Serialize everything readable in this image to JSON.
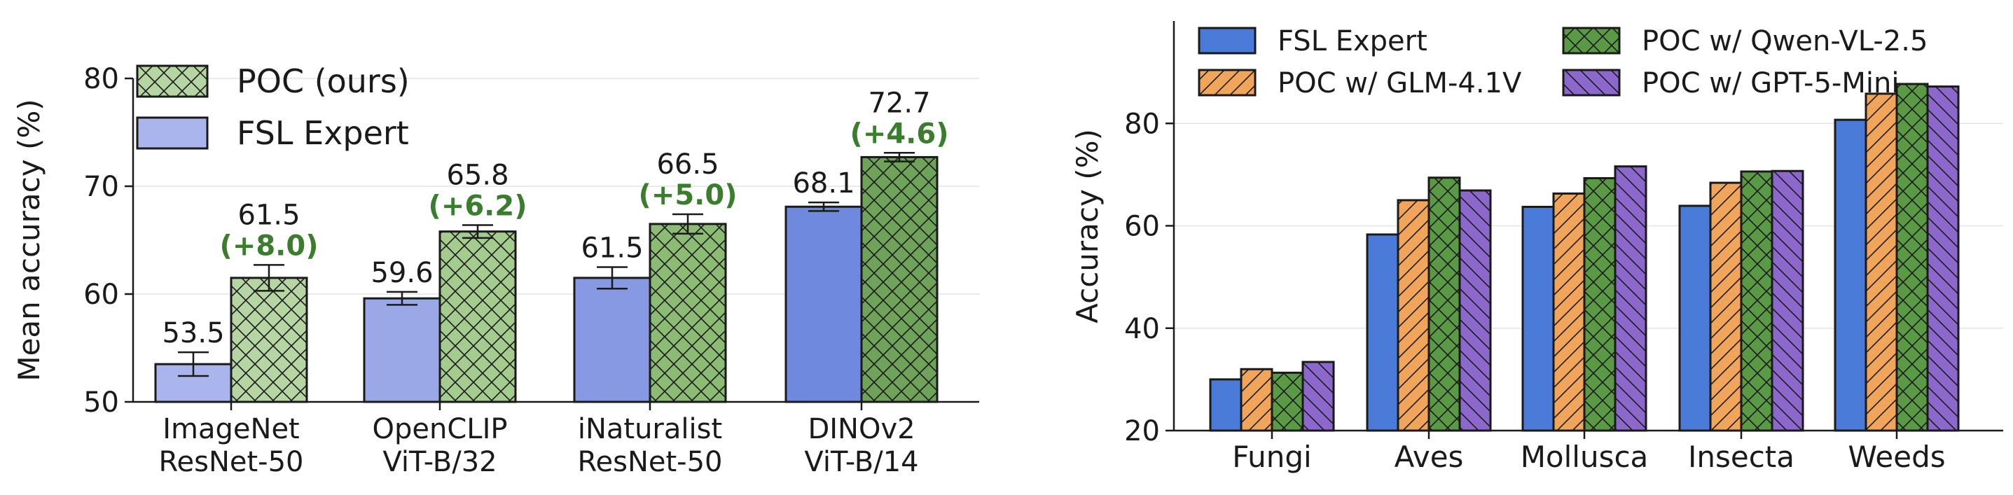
{
  "chart_data": [
    {
      "type": "bar",
      "ylabel": "Mean accuracy (%)",
      "ylim": [
        50,
        80
      ],
      "yticks": [
        "50",
        "60",
        "70",
        "80"
      ],
      "grid": true,
      "legend_placement": "top-left",
      "categories": [
        {
          "line1": "ImageNet",
          "line2": "ResNet-50"
        },
        {
          "line1": "OpenCLIP",
          "line2": "ViT-B/32"
        },
        {
          "line1": "iNaturalist",
          "line2": "ResNet-50"
        },
        {
          "line1": "DINOv2",
          "line2": "ViT-B/14"
        }
      ],
      "series": [
        {
          "name": "FSL Expert",
          "values": [
            53.5,
            59.6,
            61.5,
            68.1
          ],
          "errors": [
            1.1,
            0.6,
            1.0,
            0.4
          ],
          "labels": [
            "53.5",
            "59.6",
            "61.5",
            "68.1"
          ],
          "colors": [
            "#a9b5ec",
            "#9aa8e8",
            "#8799e3",
            "#6f89df"
          ],
          "hatch": "none"
        },
        {
          "name": "POC (ours)",
          "values": [
            61.5,
            65.8,
            66.5,
            72.7
          ],
          "errors": [
            1.2,
            0.6,
            0.9,
            0.4
          ],
          "labels": [
            "61.5",
            "65.8",
            "66.5",
            "72.7"
          ],
          "gains": [
            "(+8.0)",
            "(+6.2)",
            "(+5.0)",
            "(+4.6)"
          ],
          "colors": [
            "#b5d6a2",
            "#a4cc8e",
            "#8cbb74",
            "#6fa35a"
          ],
          "hatch": "cross"
        }
      ],
      "legend": [
        {
          "label": "POC (ours)",
          "color": "#b5d6a2",
          "hatch": "cross"
        },
        {
          "label": "FSL Expert",
          "color": "#a9b5ec",
          "hatch": "none"
        }
      ],
      "gain_color": "#3a7d2c"
    },
    {
      "type": "bar",
      "ylabel": "Accuracy (%)",
      "ylim": [
        20,
        100
      ],
      "yticks": [
        "20",
        "40",
        "60",
        "80"
      ],
      "grid": true,
      "legend_placement": "top",
      "categories": [
        "Fungi",
        "Aves",
        "Mollusca",
        "Insecta",
        "Weeds"
      ],
      "series": [
        {
          "name": "FSL Expert",
          "values": [
            30.0,
            58.3,
            63.7,
            63.9,
            80.7
          ],
          "color": "#4a7bd8",
          "hatch": "none"
        },
        {
          "name": "POC w/ GLM-4.1V",
          "values": [
            32.0,
            65.0,
            66.3,
            68.4,
            85.8
          ],
          "color": "#f0a55a",
          "hatch": "diag"
        },
        {
          "name": "POC w/ Qwen-VL-2.5",
          "values": [
            31.3,
            69.4,
            69.3,
            70.6,
            87.7
          ],
          "color": "#5a9a45",
          "hatch": "cross"
        },
        {
          "name": "POC w/ GPT-5-Mini",
          "values": [
            33.4,
            66.9,
            71.6,
            70.7,
            87.2
          ],
          "color": "#8c68cc",
          "hatch": "back"
        }
      ],
      "legend": [
        {
          "label": "FSL Expert",
          "color": "#4a7bd8",
          "hatch": "none"
        },
        {
          "label": "POC w/ Qwen-VL-2.5",
          "color": "#5a9a45",
          "hatch": "cross"
        },
        {
          "label": "POC w/ GLM-4.1V",
          "color": "#f0a55a",
          "hatch": "diag"
        },
        {
          "label": "POC w/ GPT-5-Mini",
          "color": "#8c68cc",
          "hatch": "back"
        }
      ]
    }
  ]
}
